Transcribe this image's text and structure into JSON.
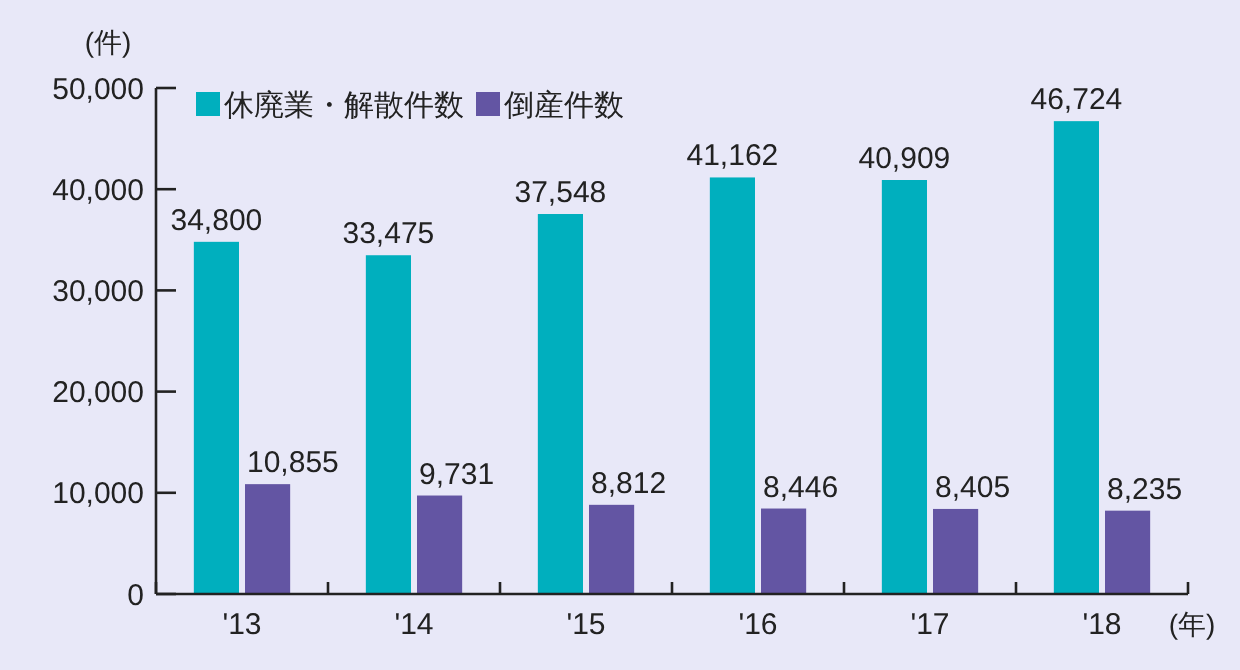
{
  "chart_data": {
    "type": "bar",
    "categories": [
      "'13",
      "'14",
      "'15",
      "'16",
      "'17",
      "'18"
    ],
    "series": [
      {
        "name": "休廃業・解散件数",
        "color": "#00afbe",
        "values": [
          34800,
          33475,
          37548,
          41162,
          40909,
          46724
        ],
        "value_labels": [
          "34,800",
          "33,475",
          "37,548",
          "41,162",
          "40,909",
          "46,724"
        ]
      },
      {
        "name": "倒産件数",
        "color": "#6355a3",
        "values": [
          10855,
          9731,
          8812,
          8446,
          8405,
          8235
        ],
        "value_labels": [
          "10,855",
          "9,731",
          "8,812",
          "8,446",
          "8,405",
          "8,235"
        ]
      }
    ],
    "ylim": [
      0,
      50000
    ],
    "yticks": [
      {
        "value": 0,
        "label": "0"
      },
      {
        "value": 10000,
        "label": "10,000"
      },
      {
        "value": 20000,
        "label": "20,000"
      },
      {
        "value": 30000,
        "label": "30,000"
      },
      {
        "value": 40000,
        "label": "40,000"
      },
      {
        "value": 50000,
        "label": "50,000"
      }
    ],
    "ylabel": "(件)",
    "xlabel": "(年)",
    "legend": "top left",
    "grid": false
  }
}
